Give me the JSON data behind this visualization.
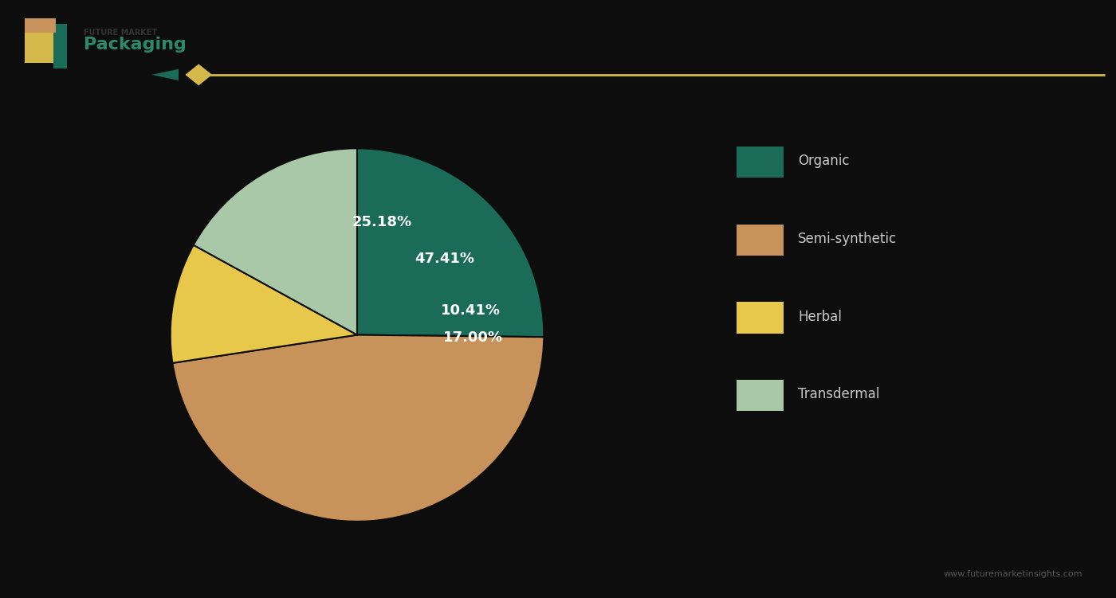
{
  "labels": [
    "Organic",
    "Semi-synthetic",
    "Herbal",
    "Transdermal"
  ],
  "values": [
    25.18,
    47.41,
    10.41,
    17.0
  ],
  "colors": [
    "#1a6b58",
    "#c8935a",
    "#e8c84a",
    "#a8c8a8"
  ],
  "background_color": "#0d0d0d",
  "text_color": "#c8c8c8",
  "label_color": "#ffffff",
  "pct_labels": [
    "25.18%",
    "47.41%",
    "10.41%",
    "17.00%"
  ],
  "legend_labels": [
    "Organic",
    "Semi-synthetic",
    "Herbal",
    "Transdermal"
  ],
  "accent_color": "#d4b84a",
  "logo_text": "Packaging",
  "watermark": "www.futuremarketinsights.com"
}
